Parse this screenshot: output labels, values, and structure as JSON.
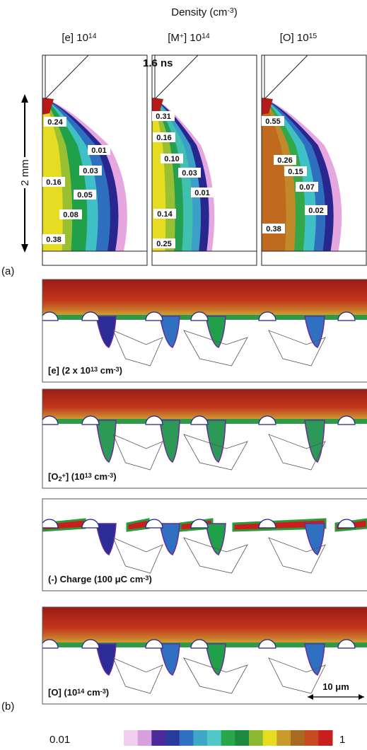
{
  "header": {
    "title": [
      {
        "t": "Density (cm"
      },
      {
        "sup": "-3"
      },
      {
        "t": ")"
      }
    ]
  },
  "panels_a": [
    {
      "title": [
        {
          "t": "[e] 10"
        },
        {
          "sup": "14"
        }
      ],
      "labels": [
        "0.24",
        "0.01",
        "0.03",
        "0.16",
        "0.05",
        "0.08",
        "0.38"
      ]
    },
    {
      "title": [
        {
          "t": "[M"
        },
        {
          "sup": "+"
        },
        {
          "t": "] 10"
        },
        {
          "sup": "14"
        }
      ],
      "labels": [
        "0.31",
        "0.16",
        "0.10",
        "0.03",
        "0.01",
        "0.14",
        "0.25"
      ]
    },
    {
      "title": [
        {
          "t": "[O] 10"
        },
        {
          "sup": "15"
        }
      ],
      "labels": [
        "0.55",
        "0.26",
        "0.15",
        "0.07",
        "0.02",
        "0.38"
      ]
    }
  ],
  "time": "1.6 ns",
  "scale_a": "2 mm",
  "label_a": "(a)",
  "panels_b": [
    {
      "title": [
        {
          "t": "[e] (2 x 10"
        },
        {
          "sup": "13"
        },
        {
          "t": " cm"
        },
        {
          "sup": "-3"
        },
        {
          "t": ")"
        }
      ]
    },
    {
      "title": [
        {
          "t": "[O"
        },
        {
          "sub": "2"
        },
        {
          "sup": "+"
        },
        {
          "t": "] (10"
        },
        {
          "sup": "13"
        },
        {
          "t": " cm"
        },
        {
          "sup": "-3"
        },
        {
          "t": ")"
        }
      ]
    },
    {
      "title": [
        {
          "t": "(-) Charge (100 μC cm"
        },
        {
          "sup": "-3"
        },
        {
          "t": ")"
        }
      ]
    },
    {
      "title": [
        {
          "t": "[O] (10"
        },
        {
          "sup": "14"
        },
        {
          "t": " cm"
        },
        {
          "sup": "-3"
        },
        {
          "t": ")"
        }
      ]
    }
  ],
  "scale_b": "10 μm",
  "label_b": "(b)",
  "colorbar": {
    "min": "0.01",
    "max": "1"
  }
}
